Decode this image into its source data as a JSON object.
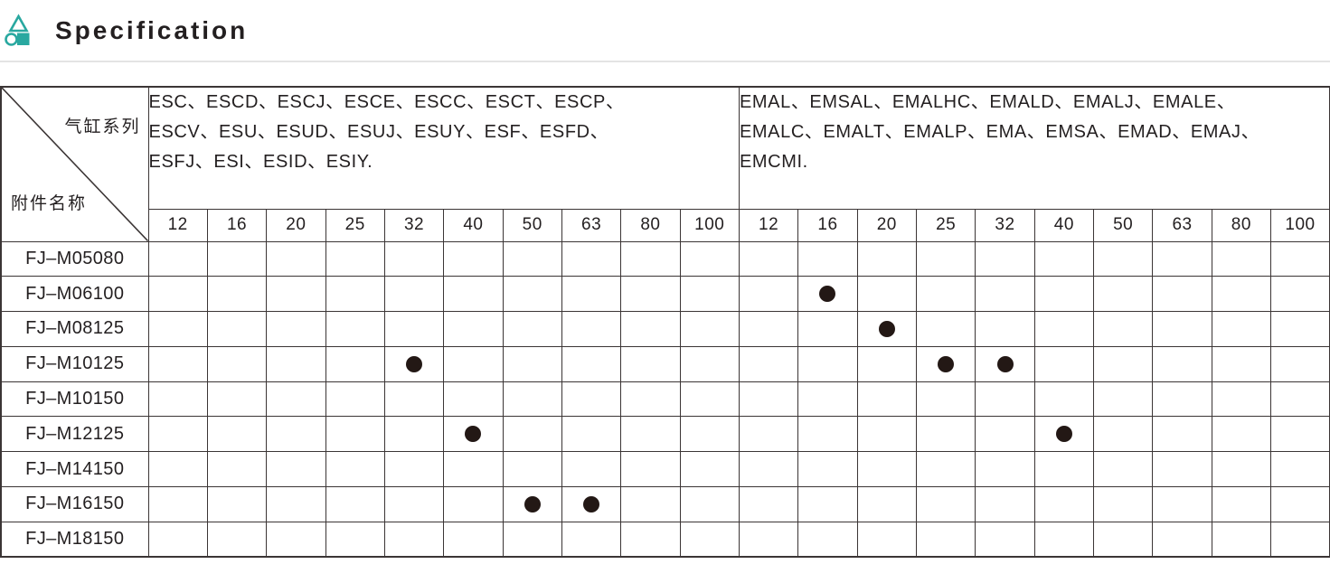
{
  "header": {
    "title": "Specification",
    "accent_color": "#29a8a0"
  },
  "table": {
    "border_color": "#3b3535",
    "dot_color": "#231815",
    "corner": {
      "top_right": "气缸系列",
      "bottom_left": "附件名称"
    },
    "groups": [
      {
        "series_lines": [
          "ESC、ESCD、ESCJ、ESCE、ESCC、ESCT、ESCP、",
          "ESCV、ESU、ESUD、ESUJ、ESUY、ESF、ESFD、",
          "ESFJ、ESI、ESID、ESIY."
        ],
        "sizes": [
          "12",
          "16",
          "20",
          "25",
          "32",
          "40",
          "50",
          "63",
          "80",
          "100"
        ]
      },
      {
        "series_lines": [
          "EMAL、EMSAL、EMALHC、EMALD、EMALJ、EMALE、",
          "EMALC、EMALT、EMALP、EMA、EMSA、EMAD、EMAJ、",
          "EMCMI."
        ],
        "sizes": [
          "12",
          "16",
          "20",
          "25",
          "32",
          "40",
          "50",
          "63",
          "80",
          "100"
        ]
      }
    ],
    "rows": [
      {
        "label": "FJ–M05080",
        "marks": [
          [],
          []
        ]
      },
      {
        "label": "FJ–M06100",
        "marks": [
          [],
          [
            "16"
          ]
        ]
      },
      {
        "label": "FJ–M08125",
        "marks": [
          [],
          [
            "20"
          ]
        ]
      },
      {
        "label": "FJ–M10125",
        "marks": [
          [
            "32"
          ],
          [
            "25",
            "32"
          ]
        ]
      },
      {
        "label": "FJ–M10150",
        "marks": [
          [],
          []
        ]
      },
      {
        "label": "FJ–M12125",
        "marks": [
          [
            "40"
          ],
          [
            "40"
          ]
        ]
      },
      {
        "label": "FJ–M14150",
        "marks": [
          [],
          []
        ]
      },
      {
        "label": "FJ–M16150",
        "marks": [
          [
            "50",
            "63"
          ],
          []
        ]
      },
      {
        "label": "FJ–M18150",
        "marks": [
          [],
          []
        ]
      }
    ]
  }
}
